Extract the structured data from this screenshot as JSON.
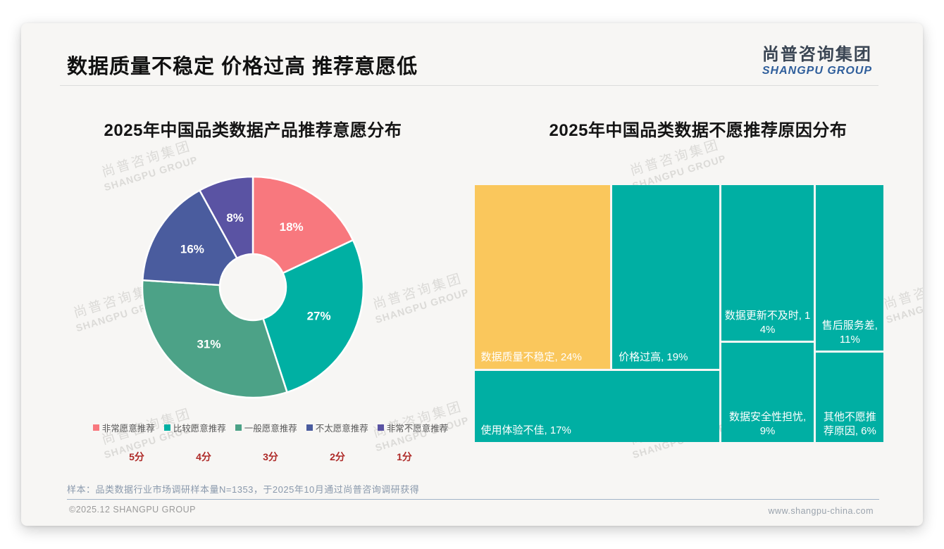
{
  "slide": {
    "main_title": "数据质量不稳定 价格过高 推荐意愿低",
    "logo": {
      "cn": "尚普咨询集团",
      "en": "SHANGPU GROUP"
    },
    "watermark": {
      "cn": "尚普咨询集团",
      "en": "SHANGPU GROUP"
    },
    "sample_note": "样本：品类数据行业市场调研样本量N=1353，于2025年10月通过尚普咨询调研获得",
    "footer_left": "©2025.12 SHANGPU GROUP",
    "footer_right": "www.shangpu-china.com"
  },
  "chart_data": [
    {
      "type": "pie",
      "subtype": "donut",
      "title": "2025年中国品类数据产品推荐意愿分布",
      "labels": [
        "非常愿意推荐",
        "比较愿意推荐",
        "一般愿意推荐",
        "不太愿意推荐",
        "非常不愿意推荐"
      ],
      "values": [
        18,
        27,
        31,
        16,
        8
      ],
      "colors": [
        "#F8787E",
        "#00B0A3",
        "#4CA287",
        "#4A5C9E",
        "#5A53A3"
      ],
      "scores": [
        "5分",
        "4分",
        "3分",
        "2分",
        "1分"
      ],
      "score_color": "#AE2A28",
      "start_angle_deg": 0,
      "direction": "clockwise",
      "legend_position": "bottom",
      "data_label_format": "percent"
    },
    {
      "type": "treemap",
      "title": "2025年中国品类数据不愿推荐原因分布",
      "items": [
        {
          "label": "数据质量不稳定",
          "value": 24,
          "color": "#FAC75C",
          "label_align": "corner"
        },
        {
          "label": "价格过高",
          "value": 19,
          "color": "#00AFA3",
          "label_align": "corner"
        },
        {
          "label": "使用体验不佳",
          "value": 17,
          "color": "#00AFA3",
          "label_align": "corner"
        },
        {
          "label": "数据更新不及时",
          "value": 14,
          "color": "#00AFA3",
          "label_align": "center"
        },
        {
          "label": "售后服务差",
          "value": 11,
          "color": "#00AFA3",
          "label_align": "center"
        },
        {
          "label": "数据安全性担忧",
          "value": 9,
          "color": "#00AFA3",
          "label_align": "center"
        },
        {
          "label": "其他不愿推荐原因",
          "value": 6,
          "color": "#00AFA3",
          "label_align": "center"
        }
      ]
    }
  ]
}
